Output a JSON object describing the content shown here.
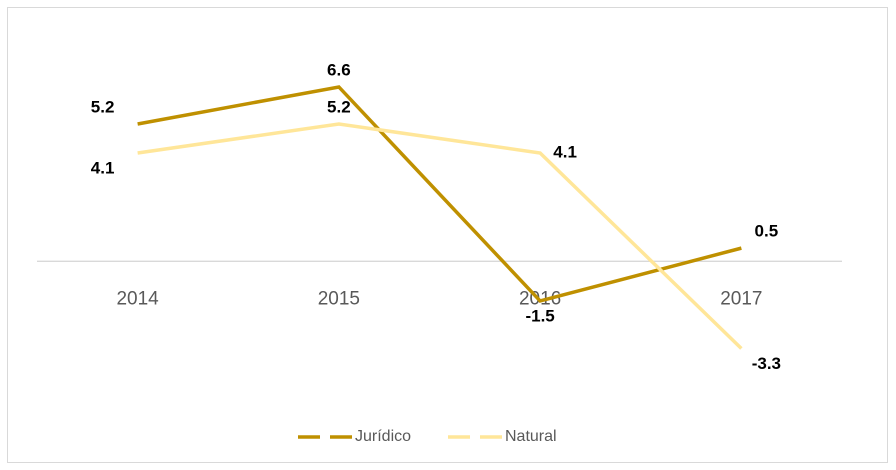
{
  "chart_data": {
    "type": "line",
    "categories": [
      "2014",
      "2015",
      "2016",
      "2017"
    ],
    "series": [
      {
        "name": "Jurídico",
        "color": "#bf9000",
        "values": [
          5.2,
          6.6,
          -1.5,
          0.5
        ]
      },
      {
        "name": "Natural",
        "color": "#ffe699",
        "values": [
          4.1,
          5.2,
          4.1,
          -3.3
        ]
      }
    ],
    "ylim": [
      -4,
      8
    ]
  }
}
